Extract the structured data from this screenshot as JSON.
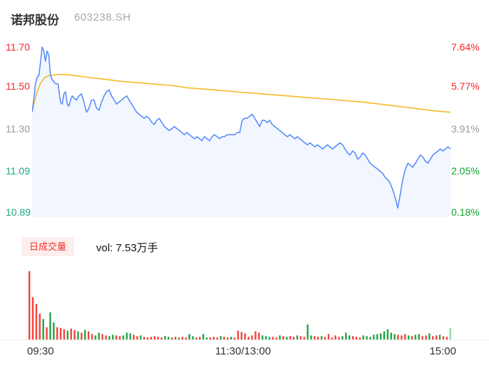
{
  "header": {
    "title": "诺邦股份",
    "code": "603238.SH"
  },
  "volume_header": {
    "badge": "日成交量",
    "vol_label": "vol: 7.53万手"
  },
  "colors": {
    "axis_red": "#f5222d",
    "axis_gray": "#999999",
    "axis_teal": "#1ba784",
    "axis_green": "#11a42e",
    "price_line": "#5b8ff9",
    "price_fill": "rgba(91,143,249,0.08)",
    "avg_line": "#f7ba2a",
    "vol_up": "#21a447",
    "vol_down": "#f4433c",
    "vol_last": "#8fd9a8",
    "badge_bg": "#fdeeee",
    "badge_text": "#f5312f"
  },
  "chart_data": {
    "type": "line",
    "title": "诺邦股份 603238.SH 分时图",
    "legend_position": "none",
    "grid": false,
    "y_axis_prices": [
      "11.70",
      "11.50",
      "11.30",
      "11.09",
      "10.89"
    ],
    "y_axis_pcts": [
      "7.64%",
      "5.77%",
      "3.91%",
      "2.05%",
      "0.18%"
    ],
    "x_labels": [
      "09:30",
      "11:30/13:00",
      "15:00"
    ],
    "ylim": [
      10.89,
      11.7
    ],
    "series": [
      {
        "name": "price",
        "points": [
          [
            0.0,
            11.38
          ],
          [
            0.004,
            11.44
          ],
          [
            0.008,
            11.52
          ],
          [
            0.012,
            11.55
          ],
          [
            0.016,
            11.56
          ],
          [
            0.02,
            11.62
          ],
          [
            0.024,
            11.7
          ],
          [
            0.028,
            11.68
          ],
          [
            0.032,
            11.63
          ],
          [
            0.036,
            11.68
          ],
          [
            0.04,
            11.66
          ],
          [
            0.044,
            11.56
          ],
          [
            0.048,
            11.54
          ],
          [
            0.052,
            11.53
          ],
          [
            0.056,
            11.52
          ],
          [
            0.062,
            11.52
          ],
          [
            0.068,
            11.43
          ],
          [
            0.072,
            11.42
          ],
          [
            0.076,
            11.47
          ],
          [
            0.08,
            11.48
          ],
          [
            0.084,
            11.42
          ],
          [
            0.088,
            11.41
          ],
          [
            0.092,
            11.44
          ],
          [
            0.096,
            11.46
          ],
          [
            0.1,
            11.45
          ],
          [
            0.106,
            11.44
          ],
          [
            0.112,
            11.46
          ],
          [
            0.118,
            11.47
          ],
          [
            0.124,
            11.43
          ],
          [
            0.13,
            11.38
          ],
          [
            0.136,
            11.4
          ],
          [
            0.142,
            11.44
          ],
          [
            0.148,
            11.44
          ],
          [
            0.154,
            11.4
          ],
          [
            0.16,
            11.39
          ],
          [
            0.166,
            11.43
          ],
          [
            0.172,
            11.46
          ],
          [
            0.178,
            11.48
          ],
          [
            0.184,
            11.49
          ],
          [
            0.19,
            11.46
          ],
          [
            0.196,
            11.44
          ],
          [
            0.202,
            11.42
          ],
          [
            0.208,
            11.43
          ],
          [
            0.214,
            11.44
          ],
          [
            0.22,
            11.45
          ],
          [
            0.226,
            11.46
          ],
          [
            0.232,
            11.44
          ],
          [
            0.238,
            11.42
          ],
          [
            0.244,
            11.4
          ],
          [
            0.25,
            11.38
          ],
          [
            0.256,
            11.37
          ],
          [
            0.262,
            11.36
          ],
          [
            0.268,
            11.35
          ],
          [
            0.274,
            11.36
          ],
          [
            0.28,
            11.35
          ],
          [
            0.286,
            11.33
          ],
          [
            0.292,
            11.32
          ],
          [
            0.298,
            11.34
          ],
          [
            0.304,
            11.35
          ],
          [
            0.31,
            11.33
          ],
          [
            0.316,
            11.31
          ],
          [
            0.322,
            11.3
          ],
          [
            0.328,
            11.29
          ],
          [
            0.334,
            11.3
          ],
          [
            0.34,
            11.31
          ],
          [
            0.346,
            11.3
          ],
          [
            0.352,
            11.29
          ],
          [
            0.358,
            11.28
          ],
          [
            0.364,
            11.27
          ],
          [
            0.37,
            11.28
          ],
          [
            0.376,
            11.27
          ],
          [
            0.382,
            11.26
          ],
          [
            0.388,
            11.25
          ],
          [
            0.394,
            11.26
          ],
          [
            0.4,
            11.25
          ],
          [
            0.406,
            11.24
          ],
          [
            0.412,
            11.26
          ],
          [
            0.418,
            11.25
          ],
          [
            0.424,
            11.24
          ],
          [
            0.43,
            11.26
          ],
          [
            0.436,
            11.27
          ],
          [
            0.442,
            11.26
          ],
          [
            0.448,
            11.25
          ],
          [
            0.454,
            11.26
          ],
          [
            0.46,
            11.26
          ],
          [
            0.466,
            11.27
          ],
          [
            0.472,
            11.27
          ],
          [
            0.478,
            11.27
          ],
          [
            0.484,
            11.27
          ],
          [
            0.49,
            11.28
          ],
          [
            0.496,
            11.28
          ],
          [
            0.502,
            11.34
          ],
          [
            0.508,
            11.35
          ],
          [
            0.514,
            11.35
          ],
          [
            0.52,
            11.36
          ],
          [
            0.526,
            11.37
          ],
          [
            0.532,
            11.35
          ],
          [
            0.538,
            11.33
          ],
          [
            0.544,
            11.31
          ],
          [
            0.55,
            11.34
          ],
          [
            0.556,
            11.34
          ],
          [
            0.562,
            11.33
          ],
          [
            0.568,
            11.34
          ],
          [
            0.574,
            11.32
          ],
          [
            0.58,
            11.31
          ],
          [
            0.586,
            11.3
          ],
          [
            0.592,
            11.29
          ],
          [
            0.598,
            11.28
          ],
          [
            0.604,
            11.27
          ],
          [
            0.61,
            11.26
          ],
          [
            0.616,
            11.27
          ],
          [
            0.622,
            11.26
          ],
          [
            0.628,
            11.25
          ],
          [
            0.634,
            11.26
          ],
          [
            0.64,
            11.25
          ],
          [
            0.646,
            11.24
          ],
          [
            0.652,
            11.23
          ],
          [
            0.658,
            11.22
          ],
          [
            0.664,
            11.23
          ],
          [
            0.67,
            11.22
          ],
          [
            0.676,
            11.21
          ],
          [
            0.682,
            11.22
          ],
          [
            0.688,
            11.21
          ],
          [
            0.694,
            11.2
          ],
          [
            0.7,
            11.21
          ],
          [
            0.706,
            11.22
          ],
          [
            0.712,
            11.21
          ],
          [
            0.718,
            11.2
          ],
          [
            0.724,
            11.21
          ],
          [
            0.73,
            11.22
          ],
          [
            0.736,
            11.23
          ],
          [
            0.742,
            11.22
          ],
          [
            0.748,
            11.2
          ],
          [
            0.754,
            11.18
          ],
          [
            0.76,
            11.17
          ],
          [
            0.766,
            11.19
          ],
          [
            0.772,
            11.18
          ],
          [
            0.778,
            11.15
          ],
          [
            0.784,
            11.16
          ],
          [
            0.79,
            11.18
          ],
          [
            0.796,
            11.17
          ],
          [
            0.802,
            11.15
          ],
          [
            0.808,
            11.13
          ],
          [
            0.814,
            11.12
          ],
          [
            0.82,
            11.11
          ],
          [
            0.826,
            11.1
          ],
          [
            0.832,
            11.09
          ],
          [
            0.838,
            11.08
          ],
          [
            0.844,
            11.06
          ],
          [
            0.85,
            11.05
          ],
          [
            0.856,
            11.03
          ],
          [
            0.862,
            11.0
          ],
          [
            0.868,
            10.96
          ],
          [
            0.874,
            10.91
          ],
          [
            0.88,
            10.98
          ],
          [
            0.886,
            11.05
          ],
          [
            0.892,
            11.1
          ],
          [
            0.898,
            11.13
          ],
          [
            0.904,
            11.12
          ],
          [
            0.91,
            11.11
          ],
          [
            0.916,
            11.13
          ],
          [
            0.922,
            11.15
          ],
          [
            0.928,
            11.17
          ],
          [
            0.934,
            11.16
          ],
          [
            0.94,
            11.14
          ],
          [
            0.946,
            11.13
          ],
          [
            0.952,
            11.15
          ],
          [
            0.958,
            11.17
          ],
          [
            0.964,
            11.18
          ],
          [
            0.97,
            11.19
          ],
          [
            0.976,
            11.2
          ],
          [
            0.982,
            11.19
          ],
          [
            0.988,
            11.2
          ],
          [
            0.994,
            11.21
          ],
          [
            1.0,
            11.2
          ]
        ]
      },
      {
        "name": "avg",
        "points": [
          [
            0.0,
            11.38
          ],
          [
            0.01,
            11.47
          ],
          [
            0.02,
            11.52
          ],
          [
            0.03,
            11.55
          ],
          [
            0.04,
            11.56
          ],
          [
            0.06,
            11.565
          ],
          [
            0.08,
            11.565
          ],
          [
            0.1,
            11.56
          ],
          [
            0.12,
            11.555
          ],
          [
            0.14,
            11.55
          ],
          [
            0.16,
            11.545
          ],
          [
            0.18,
            11.54
          ],
          [
            0.2,
            11.535
          ],
          [
            0.22,
            11.53
          ],
          [
            0.25,
            11.525
          ],
          [
            0.28,
            11.52
          ],
          [
            0.31,
            11.515
          ],
          [
            0.34,
            11.51
          ],
          [
            0.37,
            11.5
          ],
          [
            0.4,
            11.495
          ],
          [
            0.43,
            11.49
          ],
          [
            0.46,
            11.485
          ],
          [
            0.49,
            11.48
          ],
          [
            0.52,
            11.475
          ],
          [
            0.55,
            11.47
          ],
          [
            0.58,
            11.465
          ],
          [
            0.61,
            11.46
          ],
          [
            0.64,
            11.455
          ],
          [
            0.67,
            11.45
          ],
          [
            0.7,
            11.445
          ],
          [
            0.73,
            11.44
          ],
          [
            0.76,
            11.435
          ],
          [
            0.79,
            11.43
          ],
          [
            0.81,
            11.425
          ],
          [
            0.83,
            11.42
          ],
          [
            0.85,
            11.415
          ],
          [
            0.87,
            11.41
          ],
          [
            0.89,
            11.405
          ],
          [
            0.91,
            11.4
          ],
          [
            0.93,
            11.395
          ],
          [
            0.95,
            11.39
          ],
          [
            0.97,
            11.385
          ],
          [
            1.0,
            11.38
          ]
        ]
      }
    ],
    "volume_bars": [
      [
        1.0,
        "r"
      ],
      [
        0.62,
        "r"
      ],
      [
        0.52,
        "r"
      ],
      [
        0.38,
        "r"
      ],
      [
        0.3,
        "g"
      ],
      [
        0.18,
        "r"
      ],
      [
        0.4,
        "g"
      ],
      [
        0.25,
        "g"
      ],
      [
        0.18,
        "r"
      ],
      [
        0.17,
        "r"
      ],
      [
        0.15,
        "r"
      ],
      [
        0.13,
        "g"
      ],
      [
        0.16,
        "r"
      ],
      [
        0.14,
        "r"
      ],
      [
        0.12,
        "g"
      ],
      [
        0.1,
        "r"
      ],
      [
        0.14,
        "g"
      ],
      [
        0.12,
        "r"
      ],
      [
        0.08,
        "r"
      ],
      [
        0.06,
        "g"
      ],
      [
        0.1,
        "g"
      ],
      [
        0.08,
        "r"
      ],
      [
        0.06,
        "r"
      ],
      [
        0.05,
        "g"
      ],
      [
        0.07,
        "g"
      ],
      [
        0.06,
        "r"
      ],
      [
        0.05,
        "r"
      ],
      [
        0.06,
        "g"
      ],
      [
        0.1,
        "g"
      ],
      [
        0.09,
        "g"
      ],
      [
        0.07,
        "r"
      ],
      [
        0.05,
        "r"
      ],
      [
        0.06,
        "g"
      ],
      [
        0.04,
        "r"
      ],
      [
        0.03,
        "r"
      ],
      [
        0.04,
        "r"
      ],
      [
        0.05,
        "r"
      ],
      [
        0.04,
        "r"
      ],
      [
        0.03,
        "r"
      ],
      [
        0.05,
        "g"
      ],
      [
        0.04,
        "g"
      ],
      [
        0.03,
        "r"
      ],
      [
        0.04,
        "r"
      ],
      [
        0.03,
        "g"
      ],
      [
        0.04,
        "r"
      ],
      [
        0.03,
        "r"
      ],
      [
        0.08,
        "g"
      ],
      [
        0.05,
        "g"
      ],
      [
        0.03,
        "r"
      ],
      [
        0.04,
        "r"
      ],
      [
        0.08,
        "g"
      ],
      [
        0.03,
        "g"
      ],
      [
        0.03,
        "r"
      ],
      [
        0.04,
        "r"
      ],
      [
        0.03,
        "r"
      ],
      [
        0.05,
        "g"
      ],
      [
        0.04,
        "r"
      ],
      [
        0.03,
        "r"
      ],
      [
        0.04,
        "g"
      ],
      [
        0.03,
        "r"
      ],
      [
        0.13,
        "r"
      ],
      [
        0.11,
        "r"
      ],
      [
        0.09,
        "r"
      ],
      [
        0.04,
        "r"
      ],
      [
        0.06,
        "r"
      ],
      [
        0.12,
        "r"
      ],
      [
        0.1,
        "r"
      ],
      [
        0.06,
        "g"
      ],
      [
        0.05,
        "g"
      ],
      [
        0.04,
        "g"
      ],
      [
        0.04,
        "r"
      ],
      [
        0.03,
        "r"
      ],
      [
        0.06,
        "g"
      ],
      [
        0.05,
        "r"
      ],
      [
        0.04,
        "g"
      ],
      [
        0.05,
        "r"
      ],
      [
        0.04,
        "r"
      ],
      [
        0.06,
        "g"
      ],
      [
        0.05,
        "r"
      ],
      [
        0.04,
        "r"
      ],
      [
        0.22,
        "g"
      ],
      [
        0.06,
        "g"
      ],
      [
        0.05,
        "r"
      ],
      [
        0.04,
        "r"
      ],
      [
        0.05,
        "g"
      ],
      [
        0.04,
        "r"
      ],
      [
        0.08,
        "r"
      ],
      [
        0.03,
        "r"
      ],
      [
        0.06,
        "r"
      ],
      [
        0.04,
        "r"
      ],
      [
        0.05,
        "g"
      ],
      [
        0.1,
        "g"
      ],
      [
        0.06,
        "g"
      ],
      [
        0.05,
        "r"
      ],
      [
        0.04,
        "r"
      ],
      [
        0.03,
        "r"
      ],
      [
        0.06,
        "g"
      ],
      [
        0.05,
        "g"
      ],
      [
        0.04,
        "g"
      ],
      [
        0.07,
        "g"
      ],
      [
        0.08,
        "g"
      ],
      [
        0.09,
        "g"
      ],
      [
        0.12,
        "g"
      ],
      [
        0.15,
        "g"
      ],
      [
        0.1,
        "g"
      ],
      [
        0.08,
        "g"
      ],
      [
        0.07,
        "r"
      ],
      [
        0.06,
        "r"
      ],
      [
        0.08,
        "r"
      ],
      [
        0.06,
        "g"
      ],
      [
        0.05,
        "r"
      ],
      [
        0.07,
        "g"
      ],
      [
        0.08,
        "g"
      ],
      [
        0.05,
        "r"
      ],
      [
        0.06,
        "r"
      ],
      [
        0.09,
        "g"
      ],
      [
        0.05,
        "r"
      ],
      [
        0.06,
        "r"
      ],
      [
        0.07,
        "g"
      ],
      [
        0.05,
        "r"
      ],
      [
        0.04,
        "r"
      ],
      [
        0.17,
        "lg"
      ]
    ]
  }
}
